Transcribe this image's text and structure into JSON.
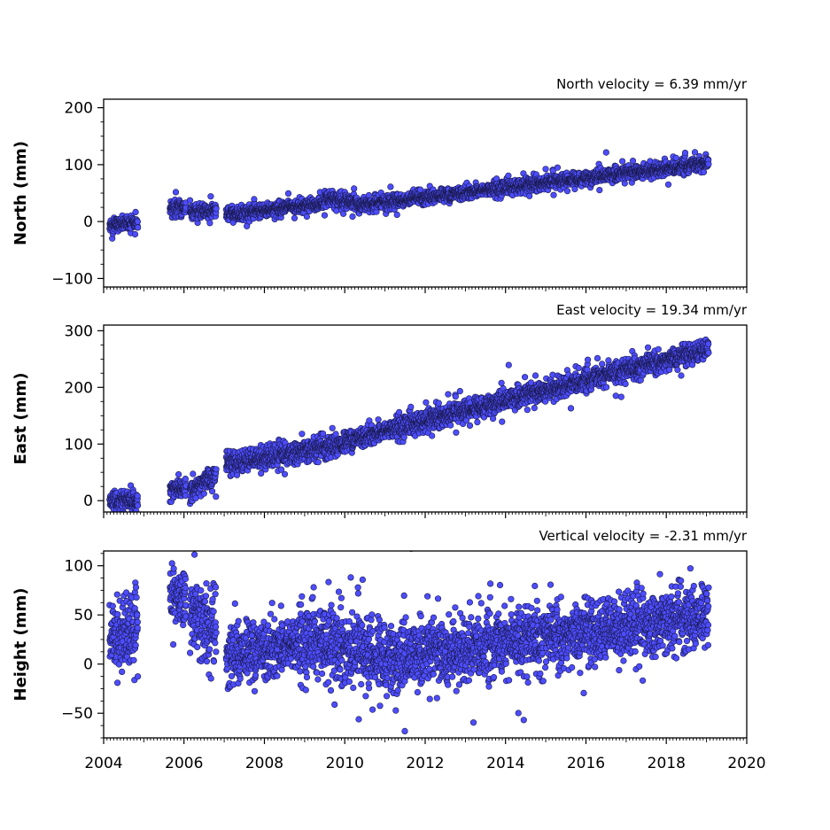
{
  "chart_data": [
    {
      "type": "scatter",
      "ylabel": "North (mm)",
      "velocity_text": "North velocity = 6.39 mm/yr",
      "xlim": [
        2004,
        2020
      ],
      "ylim": [
        -115,
        215
      ],
      "yticks": [
        -100,
        0,
        100,
        200
      ],
      "ytick_labels": [
        "−100",
        "0",
        "100",
        "200"
      ],
      "x_tick_labels_shown": false,
      "series": [
        {
          "color": "#4d4dff",
          "segments": [
            {
              "x": [
                2004.15,
                2004.85
              ],
              "y0": -6,
              "slope": 5,
              "spread": 6
            },
            {
              "x": [
                2005.65,
                2006.05
              ],
              "y0": 25,
              "slope": 0,
              "spread": 7
            },
            {
              "x": [
                2006.15,
                2006.8
              ],
              "y0": 18,
              "slope": 0,
              "spread": 6
            },
            {
              "x": [
                2007.05,
                2009.5
              ],
              "y0": 12,
              "slope": 8,
              "spread": 6
            },
            {
              "x": [
                2009.5,
                2010.3
              ],
              "y0": 40,
              "slope": -8,
              "spread": 6
            },
            {
              "x": [
                2010.3,
                2019.05
              ],
              "y0": 28,
              "slope": 8.5,
              "spread": 6
            }
          ]
        }
      ]
    },
    {
      "type": "scatter",
      "ylabel": "East (mm)",
      "velocity_text": "East velocity = 19.34 mm/yr",
      "xlim": [
        2004,
        2020
      ],
      "ylim": [
        -20,
        310
      ],
      "yticks": [
        0,
        100,
        200,
        300
      ],
      "ytick_labels": [
        "0",
        "100",
        "200",
        "300"
      ],
      "x_tick_labels_shown": false,
      "series": [
        {
          "color": "#4d4dff",
          "segments": [
            {
              "x": [
                2004.15,
                2004.85
              ],
              "y0": 0,
              "slope": 0,
              "spread": 8
            },
            {
              "x": [
                2005.65,
                2006.05
              ],
              "y0": 20,
              "slope": 0,
              "spread": 8
            },
            {
              "x": [
                2006.15,
                2006.8
              ],
              "y0": 20,
              "slope": 40,
              "spread": 10
            },
            {
              "x": [
                2007.05,
                2010.0
              ],
              "y0": 65,
              "slope": 12,
              "spread": 10
            },
            {
              "x": [
                2010.0,
                2019.05
              ],
              "y0": 105,
              "slope": 18,
              "spread": 9
            }
          ]
        }
      ]
    },
    {
      "type": "scatter",
      "ylabel": "Height (mm)",
      "velocity_text": "Vertical velocity = -2.31 mm/yr",
      "xlim": [
        2004,
        2020
      ],
      "ylim": [
        -75,
        115
      ],
      "yticks": [
        -50,
        0,
        50,
        100
      ],
      "ytick_labels": [
        "−50",
        "0",
        "50",
        "100"
      ],
      "xticks": [
        2004,
        2006,
        2008,
        2010,
        2012,
        2014,
        2016,
        2018,
        2020
      ],
      "xtick_labels": [
        "2004",
        "2006",
        "2008",
        "2010",
        "2012",
        "2014",
        "2016",
        "2018",
        "2020"
      ],
      "x_tick_labels_shown": true,
      "series": [
        {
          "color": "#4d4dff",
          "segments": [
            {
              "x": [
                2004.15,
                2004.85
              ],
              "y0": 28,
              "slope": 10,
              "spread": 18
            },
            {
              "x": [
                2005.65,
                2006.05
              ],
              "y0": 70,
              "slope": 0,
              "spread": 14
            },
            {
              "x": [
                2006.15,
                2006.8
              ],
              "y0": 55,
              "slope": -40,
              "spread": 20
            },
            {
              "x": [
                2007.05,
                2009.5
              ],
              "y0": 10,
              "slope": 6,
              "spread": 16
            },
            {
              "x": [
                2009.5,
                2011.5
              ],
              "y0": 20,
              "slope": -8,
              "spread": 18
            },
            {
              "x": [
                2011.5,
                2019.05
              ],
              "y0": 8,
              "slope": 5.5,
              "spread": 16
            }
          ]
        }
      ]
    }
  ]
}
